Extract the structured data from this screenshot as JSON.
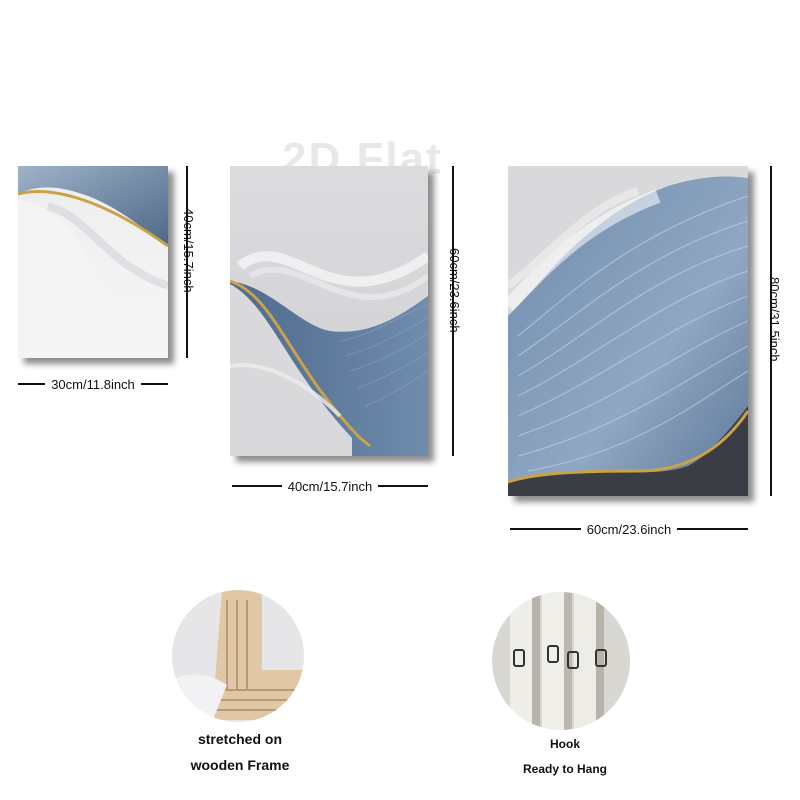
{
  "watermark": "2D Flat",
  "panels": [
    {
      "width_label": "30cm/11.8inch",
      "height_label": "40cm/15.7inch"
    },
    {
      "width_label": "40cm/15.7inch",
      "height_label": "60cm/23.6inch"
    },
    {
      "width_label": "60cm/23.6inch",
      "height_label": "80cm/31.5inch"
    }
  ],
  "features": {
    "frame": {
      "line1": "stretched on",
      "line2": "wooden Frame"
    },
    "hook": {
      "line1": "Hook",
      "line2": "Ready to Hang"
    }
  },
  "colors": {
    "blue": "#5d7a9c",
    "gold": "#c9a24a",
    "grey": "#dcdcde",
    "dark": "#3b3d44"
  }
}
